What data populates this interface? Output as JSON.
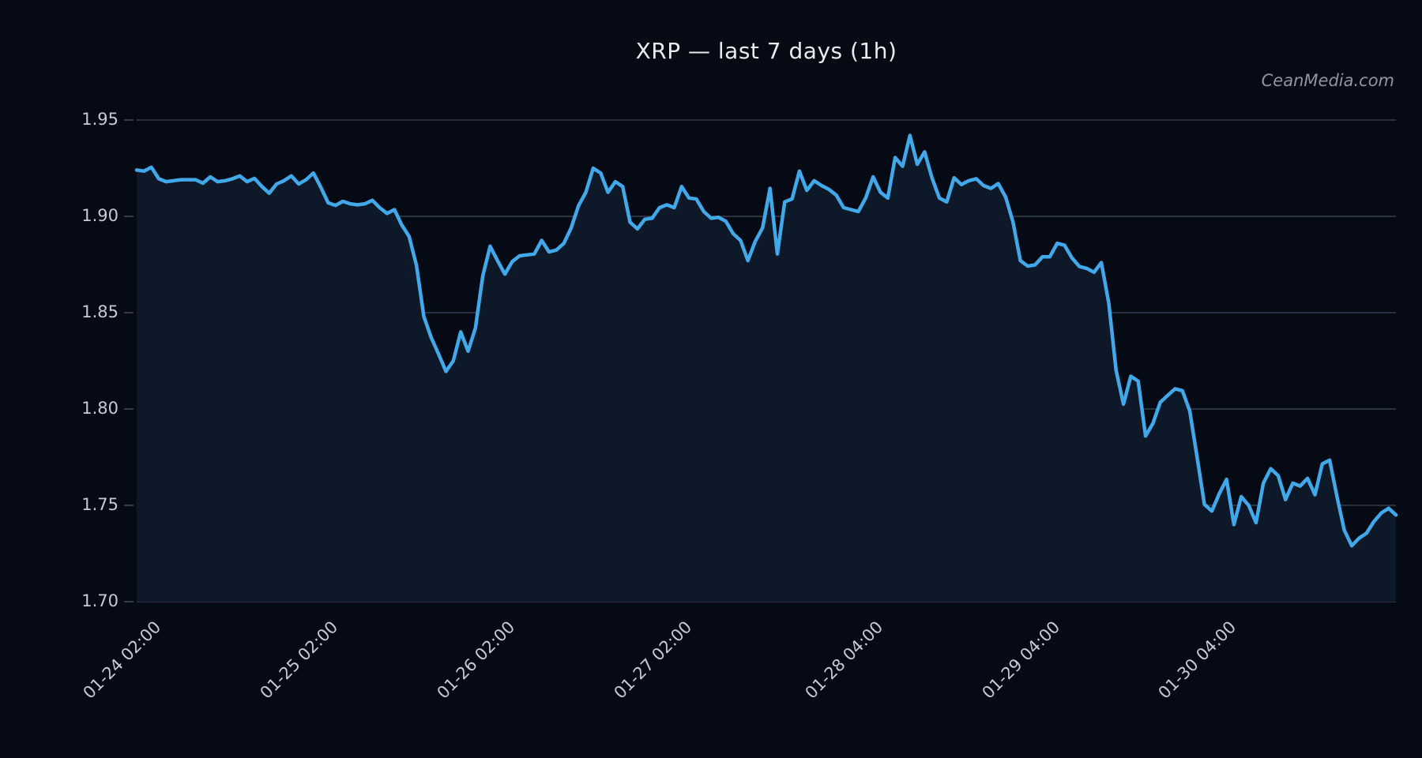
{
  "chart": {
    "title": "XRP — last 7 days (1h)",
    "watermark": "CeanMedia.com"
  },
  "chart_data": {
    "type": "area",
    "title": "XRP — last 7 days (1h)",
    "watermark": "CeanMedia.com",
    "x_unit": "1 hour per point",
    "x_tick_labels": [
      "01-24 02:00",
      "01-25 02:00",
      "01-26 02:00",
      "01-27 02:00",
      "01-28 04:00",
      "01-29 04:00",
      "01-30 04:00"
    ],
    "x_tick_indices": [
      2,
      26,
      50,
      74,
      100,
      124,
      148
    ],
    "y_ticks": [
      "1.95",
      "1.90",
      "1.85",
      "1.80",
      "1.75",
      "1.70"
    ],
    "ylim": [
      1.7,
      1.955
    ],
    "grid": "horizontal",
    "legend": "none",
    "series": [
      {
        "name": "XRP",
        "values": [
          1.924,
          1.9235,
          1.9255,
          1.9195,
          1.918,
          1.9185,
          1.919,
          1.919,
          1.919,
          1.9172,
          1.9205,
          1.918,
          1.9185,
          1.9195,
          1.921,
          1.918,
          1.9197,
          1.9155,
          1.912,
          1.9168,
          1.9185,
          1.921,
          1.9168,
          1.919,
          1.9225,
          1.9152,
          1.907,
          1.9057,
          1.9078,
          1.9065,
          1.906,
          1.9065,
          1.9083,
          1.9045,
          1.9015,
          1.9035,
          1.8955,
          1.8895,
          1.8745,
          1.848,
          1.837,
          1.8285,
          1.8195,
          1.825,
          1.84,
          1.83,
          1.842,
          1.869,
          1.8845,
          1.877,
          1.87,
          1.8765,
          1.8795,
          1.88,
          1.8805,
          1.8875,
          1.8815,
          1.8825,
          1.886,
          1.894,
          1.9055,
          1.9125,
          1.925,
          1.9225,
          1.9125,
          1.918,
          1.9155,
          1.897,
          1.8935,
          1.8985,
          1.899,
          1.9045,
          1.906,
          1.9045,
          1.9155,
          1.9095,
          1.909,
          1.9025,
          1.899,
          1.8995,
          1.8975,
          1.891,
          1.8875,
          1.877,
          1.887,
          1.894,
          1.9145,
          1.8805,
          1.9075,
          1.909,
          1.9235,
          1.9135,
          1.9185,
          1.916,
          1.914,
          1.911,
          1.9045,
          1.9035,
          1.9025,
          1.9095,
          1.9205,
          1.9125,
          1.9095,
          1.9305,
          1.926,
          1.942,
          1.927,
          1.9335,
          1.92,
          1.9095,
          1.9075,
          1.92,
          1.9165,
          1.9185,
          1.9195,
          1.916,
          1.9145,
          1.917,
          1.91,
          1.897,
          1.877,
          1.8742,
          1.8748,
          1.879,
          1.879,
          1.886,
          1.885,
          1.8785,
          1.874,
          1.873,
          1.871,
          1.876,
          1.855,
          1.82,
          1.8025,
          1.817,
          1.8145,
          1.786,
          1.7925,
          1.8035,
          1.807,
          1.8105,
          1.8095,
          1.799,
          1.775,
          1.7505,
          1.747,
          1.756,
          1.7635,
          1.74,
          1.7545,
          1.75,
          1.741,
          1.7615,
          1.769,
          1.7655,
          1.753,
          1.7615,
          1.76,
          1.764,
          1.7555,
          1.7715,
          1.7735,
          1.7545,
          1.737,
          1.729,
          1.733,
          1.7355,
          1.7415,
          1.746,
          1.7485,
          1.745
        ]
      }
    ],
    "colors": {
      "background": "#050a15",
      "fill": "#0d1828",
      "line": "#41a8ea",
      "grid": "#3a414f",
      "tick_text": "#c6cad4",
      "title_text": "#e9ebf1",
      "watermark_text": "#8f95a2"
    }
  }
}
